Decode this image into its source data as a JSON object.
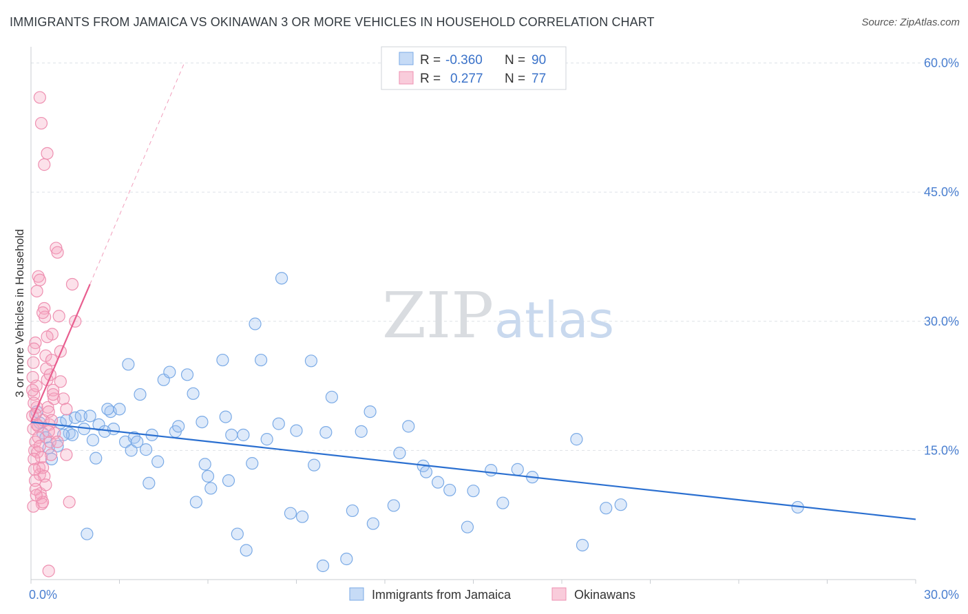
{
  "title": "IMMIGRANTS FROM JAMAICA VS OKINAWAN 3 OR MORE VEHICLES IN HOUSEHOLD CORRELATION CHART",
  "source": "Source: ZipAtlas.com",
  "watermark": {
    "part1": "ZIP",
    "part2": "atlas"
  },
  "chart_data": {
    "type": "scatter",
    "ylabel": "3 or more Vehicles in Household",
    "xlim": [
      0,
      30
    ],
    "ylim": [
      0,
      61
    ],
    "x_tick_labels": [
      "0.0%",
      "30.0%"
    ],
    "y_ticks": [
      15,
      30,
      45,
      60
    ],
    "y_tick_labels": [
      "15.0%",
      "30.0%",
      "45.0%",
      "60.0%"
    ],
    "legend": {
      "rows": [
        {
          "r_label": "R =",
          "r_value": "-0.360",
          "n_label": "N =",
          "n_value": "90"
        },
        {
          "r_label": "R =",
          "r_value": " 0.277",
          "n_label": "N =",
          "n_value": "77"
        }
      ]
    },
    "series": [
      {
        "name": "Immigrants from Jamaica",
        "color": "#7aaae6",
        "fill": "rgba(160,195,240,0.35)",
        "trend": {
          "x0": 0,
          "y0": 18.3,
          "x1": 30,
          "y1": 7.0,
          "color": "#2a6fd0"
        },
        "points": [
          [
            0.2,
            19.5
          ],
          [
            0.3,
            18.2
          ],
          [
            0.4,
            17.0
          ],
          [
            0.5,
            16.5
          ],
          [
            0.6,
            15.3
          ],
          [
            0.7,
            14.0
          ],
          [
            0.9,
            15.5
          ],
          [
            1.0,
            18.2
          ],
          [
            1.2,
            18.5
          ],
          [
            1.3,
            17.0
          ],
          [
            1.4,
            16.8
          ],
          [
            1.5,
            18.8
          ],
          [
            1.7,
            19.0
          ],
          [
            1.8,
            17.5
          ],
          [
            2.0,
            19.0
          ],
          [
            2.1,
            16.2
          ],
          [
            2.3,
            18.0
          ],
          [
            2.5,
            17.2
          ],
          [
            2.7,
            19.5
          ],
          [
            2.8,
            17.5
          ],
          [
            3.0,
            19.8
          ],
          [
            3.2,
            16.0
          ],
          [
            3.4,
            15.0
          ],
          [
            3.5,
            16.5
          ],
          [
            3.7,
            21.5
          ],
          [
            3.9,
            15.1
          ],
          [
            4.1,
            16.8
          ],
          [
            4.3,
            13.7
          ],
          [
            4.5,
            23.2
          ],
          [
            4.7,
            24.1
          ],
          [
            4.9,
            17.2
          ],
          [
            5.0,
            17.8
          ],
          [
            5.3,
            23.8
          ],
          [
            5.5,
            21.6
          ],
          [
            5.8,
            18.3
          ],
          [
            5.9,
            13.4
          ],
          [
            6.0,
            12.0
          ],
          [
            6.1,
            10.6
          ],
          [
            6.5,
            25.5
          ],
          [
            6.6,
            18.9
          ],
          [
            6.7,
            11.5
          ],
          [
            6.8,
            16.8
          ],
          [
            7.0,
            5.3
          ],
          [
            7.2,
            16.8
          ],
          [
            7.5,
            13.5
          ],
          [
            7.6,
            29.7
          ],
          [
            7.8,
            25.5
          ],
          [
            8.0,
            16.3
          ],
          [
            8.4,
            18.1
          ],
          [
            8.5,
            35.0
          ],
          [
            8.8,
            7.7
          ],
          [
            9.0,
            17.3
          ],
          [
            9.2,
            7.3
          ],
          [
            9.5,
            25.4
          ],
          [
            9.6,
            13.3
          ],
          [
            10.0,
            17.1
          ],
          [
            10.2,
            21.2
          ],
          [
            10.7,
            2.4
          ],
          [
            10.9,
            8.0
          ],
          [
            11.2,
            17.2
          ],
          [
            11.5,
            19.5
          ],
          [
            11.6,
            6.5
          ],
          [
            12.3,
            8.6
          ],
          [
            12.5,
            14.7
          ],
          [
            12.8,
            17.8
          ],
          [
            13.3,
            13.2
          ],
          [
            13.4,
            12.5
          ],
          [
            13.8,
            11.3
          ],
          [
            14.2,
            10.4
          ],
          [
            14.8,
            6.1
          ],
          [
            15.0,
            10.3
          ],
          [
            15.6,
            12.7
          ],
          [
            16.0,
            8.9
          ],
          [
            16.5,
            12.8
          ],
          [
            17.0,
            11.9
          ],
          [
            18.5,
            16.3
          ],
          [
            18.7,
            4.0
          ],
          [
            19.5,
            8.3
          ],
          [
            20.0,
            8.7
          ],
          [
            26.0,
            8.4
          ],
          [
            2.6,
            19.8
          ],
          [
            1.9,
            5.3
          ],
          [
            3.6,
            16.0
          ],
          [
            2.2,
            14.1
          ],
          [
            4.0,
            11.2
          ],
          [
            5.6,
            9.0
          ],
          [
            7.3,
            3.4
          ],
          [
            9.9,
            1.6
          ],
          [
            3.3,
            25.0
          ],
          [
            1.1,
            16.8
          ]
        ]
      },
      {
        "name": "Okinawans",
        "color": "#ee8fb0",
        "fill": "rgba(245,170,195,0.35)",
        "trend": {
          "x0": 0,
          "y0": 18.3,
          "x1": 2.0,
          "y1": 34.3,
          "x2": 5.2,
          "y2": 60,
          "color": "#e85e8f"
        },
        "points": [
          [
            0.05,
            19.0
          ],
          [
            0.08,
            17.5
          ],
          [
            0.1,
            21.5
          ],
          [
            0.12,
            15.0
          ],
          [
            0.15,
            16.0
          ],
          [
            0.18,
            22.5
          ],
          [
            0.2,
            20.0
          ],
          [
            0.22,
            14.8
          ],
          [
            0.25,
            17.8
          ],
          [
            0.28,
            13.0
          ],
          [
            0.3,
            12.2
          ],
          [
            0.32,
            10.0
          ],
          [
            0.35,
            9.5
          ],
          [
            0.37,
            8.8
          ],
          [
            0.4,
            9.0
          ],
          [
            0.42,
            18.5
          ],
          [
            0.45,
            31.5
          ],
          [
            0.47,
            30.5
          ],
          [
            0.5,
            26.0
          ],
          [
            0.52,
            24.5
          ],
          [
            0.55,
            23.2
          ],
          [
            0.57,
            20.0
          ],
          [
            0.6,
            19.5
          ],
          [
            0.62,
            18.0
          ],
          [
            0.65,
            16.0
          ],
          [
            0.68,
            14.5
          ],
          [
            0.7,
            25.5
          ],
          [
            0.72,
            28.5
          ],
          [
            0.75,
            22.0
          ],
          [
            0.78,
            21.0
          ],
          [
            0.8,
            17.0
          ],
          [
            0.85,
            38.5
          ],
          [
            0.9,
            38.0
          ],
          [
            0.95,
            30.6
          ],
          [
            1.0,
            23.0
          ],
          [
            1.1,
            21.0
          ],
          [
            1.2,
            19.8
          ],
          [
            1.3,
            9.0
          ],
          [
            1.4,
            34.3
          ],
          [
            1.5,
            30.0
          ],
          [
            0.3,
            56.0
          ],
          [
            0.35,
            53.0
          ],
          [
            0.45,
            48.2
          ],
          [
            0.55,
            49.5
          ],
          [
            0.2,
            33.5
          ],
          [
            0.25,
            35.2
          ],
          [
            0.3,
            34.8
          ],
          [
            0.4,
            31.0
          ],
          [
            0.15,
            27.5
          ],
          [
            0.1,
            26.8
          ],
          [
            0.08,
            25.2
          ],
          [
            0.06,
            23.5
          ],
          [
            0.05,
            22.0
          ],
          [
            0.1,
            20.5
          ],
          [
            0.15,
            19.2
          ],
          [
            0.2,
            18.0
          ],
          [
            0.25,
            16.5
          ],
          [
            0.3,
            15.5
          ],
          [
            0.35,
            14.2
          ],
          [
            0.4,
            13.0
          ],
          [
            0.45,
            12.0
          ],
          [
            0.5,
            11.0
          ],
          [
            0.1,
            14.0
          ],
          [
            0.12,
            12.8
          ],
          [
            0.14,
            11.5
          ],
          [
            0.16,
            10.5
          ],
          [
            0.18,
            9.8
          ],
          [
            0.08,
            8.5
          ],
          [
            0.6,
            1.0
          ],
          [
            1.0,
            26.5
          ],
          [
            0.6,
            17.2
          ],
          [
            0.7,
            18.5
          ],
          [
            0.9,
            16.0
          ],
          [
            1.2,
            14.5
          ],
          [
            0.55,
            28.2
          ],
          [
            0.65,
            23.8
          ],
          [
            0.75,
            21.5
          ]
        ]
      }
    ]
  }
}
